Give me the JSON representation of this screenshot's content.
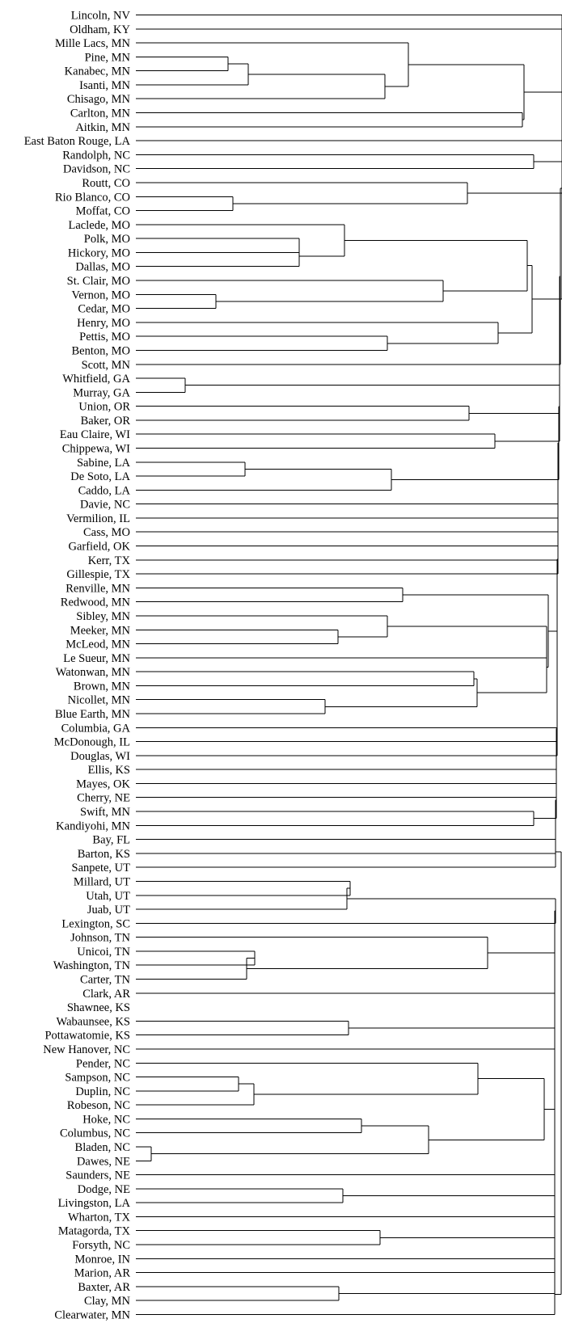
{
  "dendrogram": {
    "leaves": [
      "Lincoln, NV",
      "Oldham, KY",
      "Mille Lacs, MN",
      "Pine, MN",
      "Kanabec, MN",
      "Isanti, MN",
      "Chisago, MN",
      "Carlton, MN",
      "Aitkin, MN",
      "East Baton Rouge, LA",
      "Randolph, NC",
      "Davidson, NC",
      "Routt, CO",
      "Rio Blanco, CO",
      "Moffat, CO",
      "Laclede, MO",
      "Polk, MO",
      "Hickory, MO",
      "Dallas, MO",
      "St. Clair, MO",
      "Vernon, MO",
      "Cedar, MO",
      "Henry, MO",
      "Pettis, MO",
      "Benton, MO",
      "Scott, MN",
      "Whitfield, GA",
      "Murray, GA",
      "Union, OR",
      "Baker, OR",
      "Eau Claire, WI",
      "Chippewa, WI",
      "Sabine, LA",
      "De Soto, LA",
      "Caddo, LA",
      "Davie, NC",
      "Vermilion, IL",
      "Cass, MO",
      "Garfield, OK",
      "Kerr, TX",
      "Gillespie, TX",
      "Renville, MN",
      "Redwood, MN",
      "Sibley, MN",
      "Meeker, MN",
      "McLeod, MN",
      "Le Sueur, MN",
      "Watonwan, MN",
      "Brown, MN",
      "Nicollet, MN",
      "Blue Earth, MN",
      "Columbia, GA",
      "McDonough, IL",
      "Douglas, WI",
      "Ellis, KS",
      "Mayes, OK",
      "Cherry, NE",
      "Swift, MN",
      "Kandiyohi, MN",
      "Bay, FL",
      "Barton, KS",
      "Sanpete, UT",
      "Millard, UT",
      "Utah, UT",
      "Juab, UT",
      "Lexington, SC",
      "Johnson, TN",
      "Unicoi, TN",
      "Washington, TN",
      "Carter, TN",
      "Clark, AR",
      "Shawnee, KS",
      "Wabaunsee, KS",
      "Pottawatomie, KS",
      "New Hanover, NC",
      "Pender, NC",
      "Sampson, NC",
      "Duplin, NC",
      "Robeson, NC",
      "Hoke, NC",
      "Columbus, NC",
      "Bladen, NC",
      "Dawes, NE",
      "Saunders, NE",
      "Dodge, NE",
      "Livingston, LA",
      "Wharton, TX",
      "Matagorda, TX",
      "Forsyth, NC",
      "Monroe, IN",
      "Marion, AR",
      "Baxter, AR",
      "Clay, MN",
      "Clearwater, MN"
    ]
  }
}
